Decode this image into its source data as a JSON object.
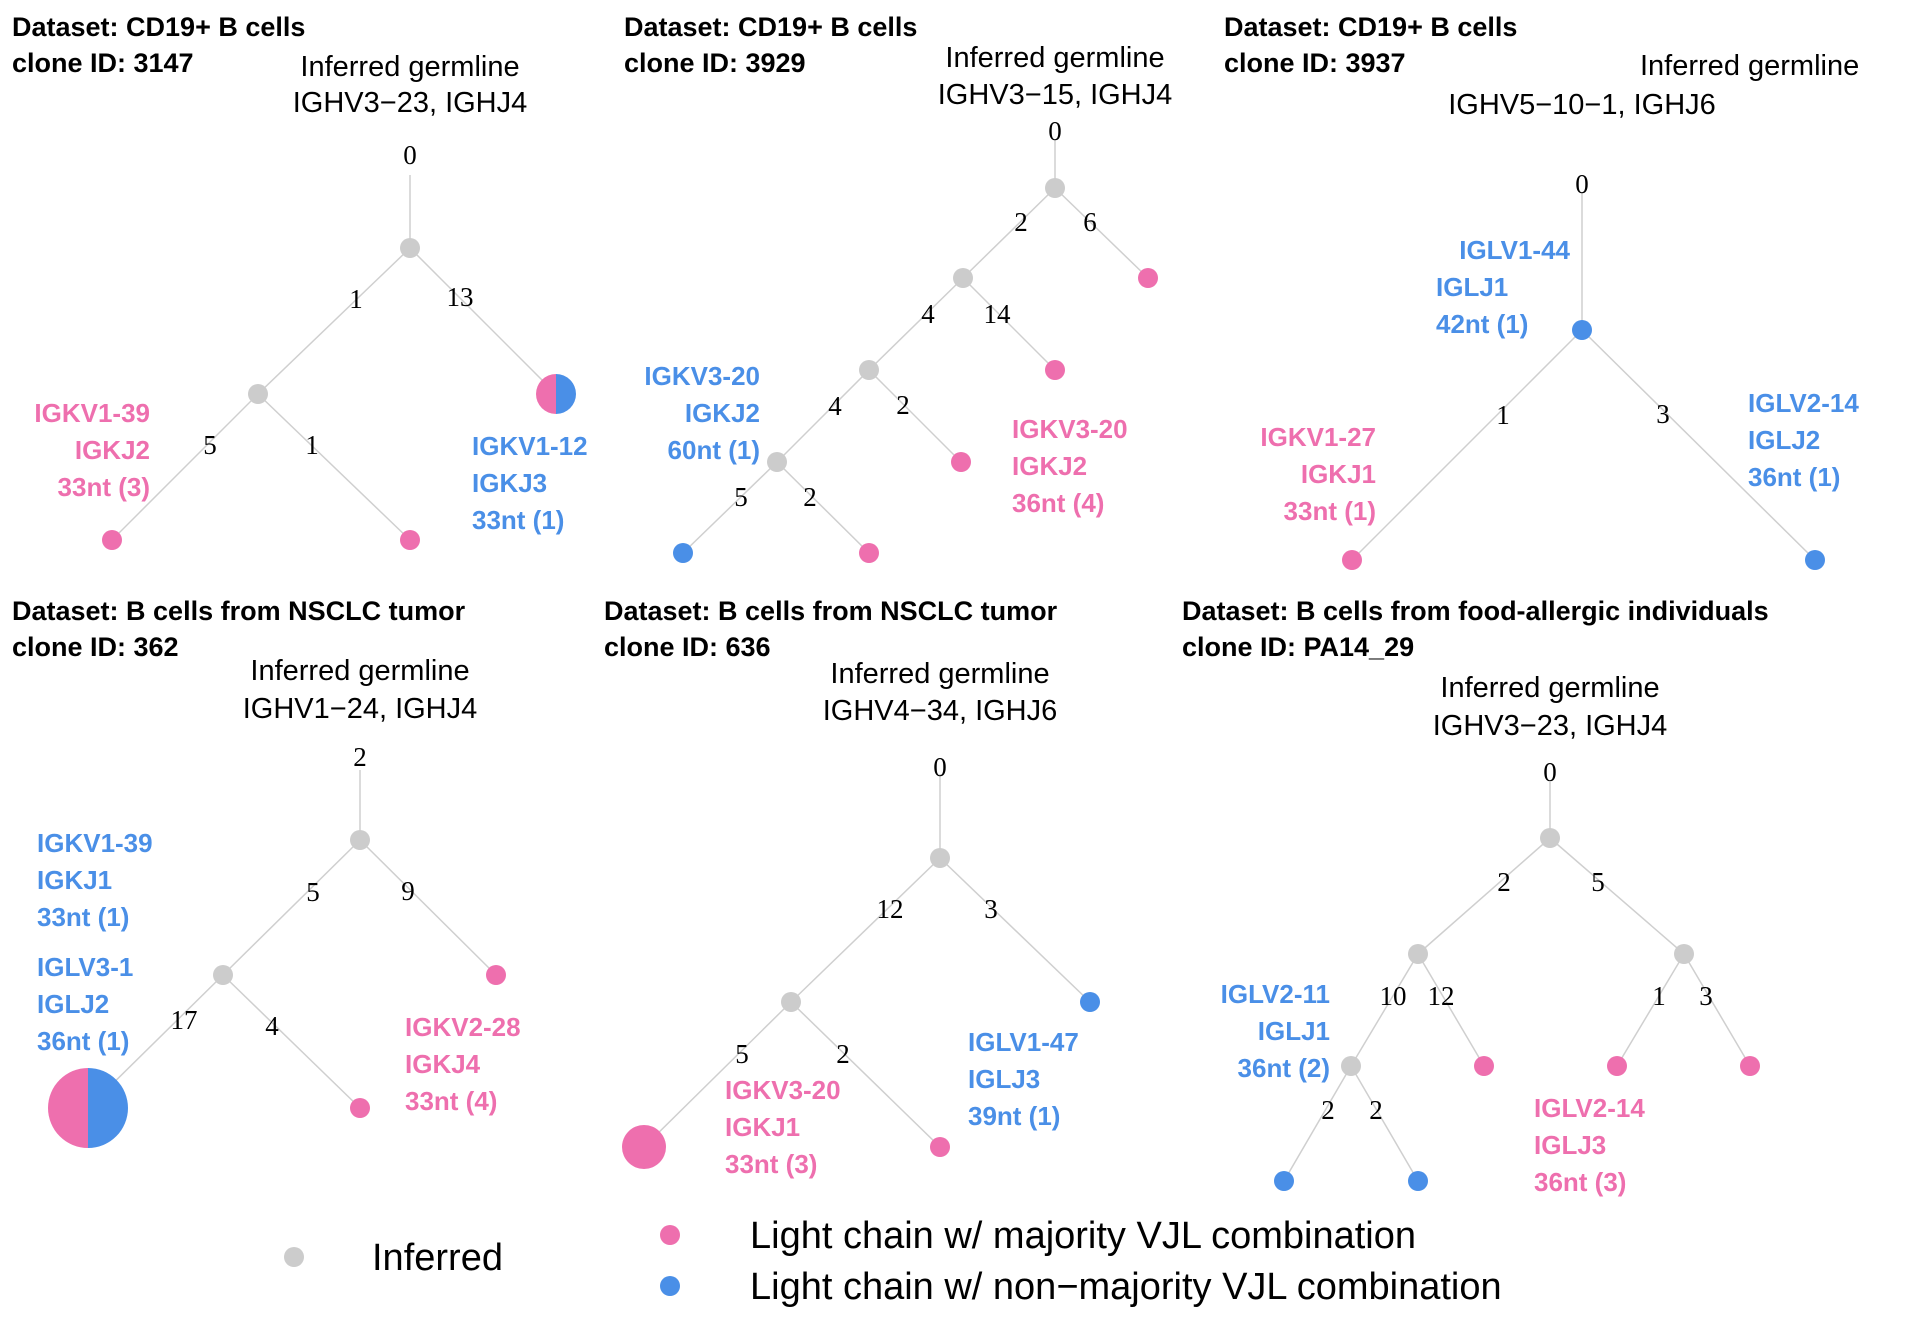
{
  "colors": {
    "inferred": "#cccccc",
    "majority": "#ee6fae",
    "non_majority": "#4a8fe7",
    "edge": "#cfcfcf"
  },
  "panels": [
    {
      "dataset": "Dataset: CD19+ B cells",
      "clone": "clone ID: 3147",
      "germline_title": "Inferred germline",
      "germline_genes": "IGHV3−23, IGHJ4",
      "edge_labels": [
        "0",
        "1",
        "13",
        "5",
        "1"
      ],
      "annotations": [
        {
          "lines": [
            "IGKV1-39",
            "IGKJ2",
            "33nt (3)"
          ],
          "color": "majority"
        },
        {
          "lines": [
            "IGKV1-12",
            "IGKJ3",
            "33nt (1)"
          ],
          "color": "non_majority"
        }
      ]
    },
    {
      "dataset": "Dataset: CD19+ B cells",
      "clone": "clone ID: 3929",
      "germline_title": "Inferred germline",
      "germline_genes": "IGHV3−15, IGHJ4",
      "edge_labels": [
        "0",
        "2",
        "6",
        "4",
        "14",
        "4",
        "2",
        "5",
        "2"
      ],
      "annotations": [
        {
          "lines": [
            "IGKV3-20",
            "IGKJ2",
            "60nt (1)"
          ],
          "color": "non_majority"
        },
        {
          "lines": [
            "IGKV3-20",
            "IGKJ2",
            "36nt (4)"
          ],
          "color": "majority"
        }
      ]
    },
    {
      "dataset": "Dataset: CD19+ B cells",
      "clone": "clone ID: 3937",
      "germline_title": "Inferred germline",
      "germline_genes": "IGHV5−10−1, IGHJ6",
      "edge_labels": [
        "0",
        "1",
        "3"
      ],
      "annotations": [
        {
          "lines": [
            "IGLV1-44",
            "IGLJ1",
            "42nt (1)"
          ],
          "color": "non_majority"
        },
        {
          "lines": [
            "IGKV1-27",
            "IGKJ1",
            "33nt (1)"
          ],
          "color": "majority"
        },
        {
          "lines": [
            "IGLV2-14",
            "IGLJ2",
            "36nt (1)"
          ],
          "color": "non_majority"
        }
      ]
    },
    {
      "dataset": "Dataset: B cells from NSCLC tumor",
      "clone": "clone ID: 362",
      "germline_title": "Inferred germline",
      "germline_genes": "IGHV1−24, IGHJ4",
      "edge_labels": [
        "2",
        "5",
        "9",
        "17",
        "4"
      ],
      "annotations": [
        {
          "lines": [
            "IGKV1-39",
            "IGKJ1",
            "33nt (1)"
          ],
          "color": "non_majority"
        },
        {
          "lines": [
            "IGLV3-1",
            "IGLJ2",
            "36nt (1)"
          ],
          "color": "non_majority"
        },
        {
          "lines": [
            "IGKV2-28",
            "IGKJ4",
            "33nt (4)"
          ],
          "color": "majority"
        }
      ]
    },
    {
      "dataset": "Dataset: B cells from NSCLC tumor",
      "clone": "clone ID: 636",
      "germline_title": "Inferred germline",
      "germline_genes": "IGHV4−34, IGHJ6",
      "edge_labels": [
        "0",
        "12",
        "3",
        "5",
        "2"
      ],
      "annotations": [
        {
          "lines": [
            "IGKV3-20",
            "IGKJ1",
            "33nt (3)"
          ],
          "color": "majority"
        },
        {
          "lines": [
            "IGLV1-47",
            "IGLJ3",
            "39nt (1)"
          ],
          "color": "non_majority"
        }
      ]
    },
    {
      "dataset": "Dataset: B cells from food-allergic individuals",
      "clone": "clone ID: PA14_29",
      "germline_title": "Inferred germline",
      "germline_genes": "IGHV3−23, IGHJ4",
      "edge_labels": [
        "0",
        "2",
        "5",
        "10",
        "12",
        "1",
        "3",
        "2",
        "2"
      ],
      "annotations": [
        {
          "lines": [
            "IGLV2-11",
            "IGLJ1",
            "36nt (2)"
          ],
          "color": "non_majority"
        },
        {
          "lines": [
            "IGLV2-14",
            "IGLJ3",
            "36nt (3)"
          ],
          "color": "majority"
        }
      ]
    }
  ],
  "legend": {
    "inferred": "Inferred",
    "majority": "Light chain w/ majority VJL combination",
    "non_majority": "Light chain w/ non−majority VJL combination"
  }
}
